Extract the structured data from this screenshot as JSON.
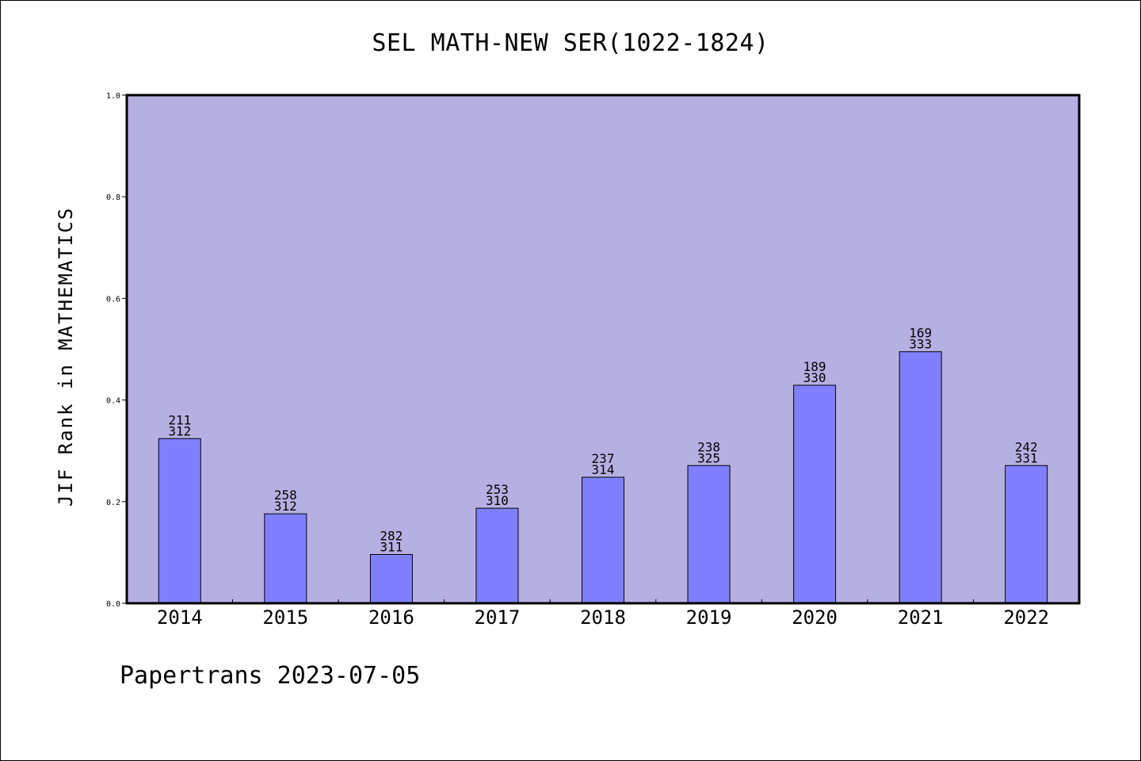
{
  "title": "SEL MATH-NEW SER(1022-1824)",
  "footer": "Papertrans 2023-07-05",
  "colors": {
    "plot_background": "#b6b0e2",
    "bar_fill": "#8080ff",
    "bar_stroke": "#000000"
  },
  "chart_data": {
    "type": "bar",
    "title": "SEL MATH-NEW SER(1022-1824)",
    "xlabel": "",
    "ylabel": "JIF Rank in MATHEMATICS",
    "ylim": [
      0,
      1
    ],
    "yticks": [
      "0.0",
      "0.2",
      "0.4",
      "0.6",
      "0.8",
      "1.0"
    ],
    "grid": false,
    "categories": [
      "2014",
      "2015",
      "2016",
      "2017",
      "2018",
      "2019",
      "2020",
      "2021",
      "2022"
    ],
    "values": [
      0.324,
      0.176,
      0.096,
      0.187,
      0.248,
      0.271,
      0.429,
      0.495,
      0.271
    ],
    "rank": [
      "211",
      "258",
      "282",
      "253",
      "237",
      "238",
      "189",
      "169",
      "242"
    ],
    "total": [
      "312",
      "312",
      "311",
      "310",
      "314",
      "325",
      "330",
      "333",
      "331"
    ]
  }
}
